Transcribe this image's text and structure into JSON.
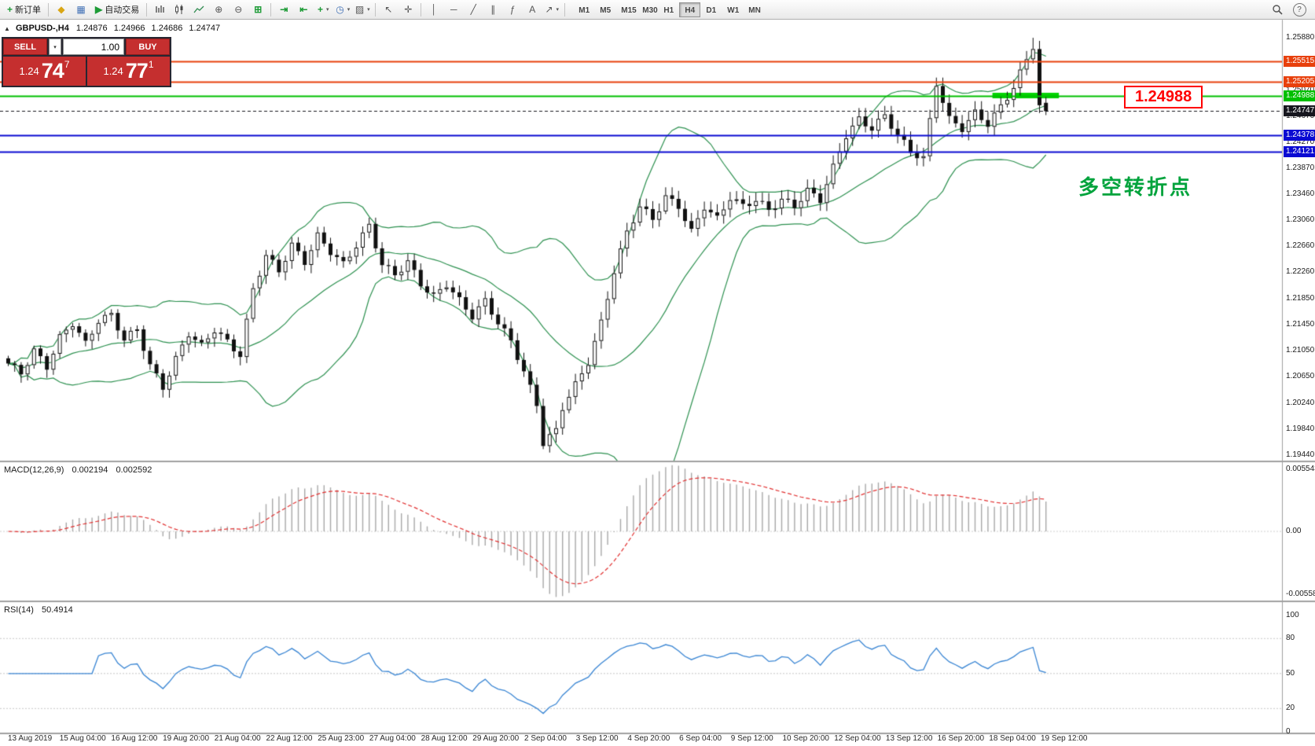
{
  "toolbar": {
    "new_order_label": "新订单",
    "autotrading_label": "自动交易",
    "timeframes": [
      "M1",
      "M5",
      "M15",
      "M30",
      "H1",
      "H4",
      "D1",
      "W1",
      "MN"
    ],
    "active_timeframe": "H4"
  },
  "trade_panel": {
    "sell_label": "SELL",
    "buy_label": "BUY",
    "volume": "1.00",
    "sell_price_small": "1.24",
    "sell_price_big": "74",
    "sell_price_sup": "7",
    "buy_price_small": "1.24",
    "buy_price_big": "77",
    "buy_price_sup": "1"
  },
  "chart_header": {
    "symbol": "GBPUSD-,H4",
    "open": "1.24876",
    "high": "1.24966",
    "low": "1.24686",
    "close": "1.24747"
  },
  "annotations": {
    "price_callout": "1.24988",
    "pivot_text": "多空转折点"
  },
  "price_scale": {
    "plot_max": 1.2616,
    "plot_min": 1.1935,
    "grid_labels": [
      "1.25880",
      "1.25470",
      "1.25070",
      "1.24670",
      "1.24270",
      "1.23870",
      "1.23460",
      "1.23060",
      "1.22660",
      "1.22260",
      "1.21850",
      "1.21450",
      "1.21050",
      "1.20650",
      "1.20240",
      "1.19840",
      "1.19440"
    ],
    "level_labels": [
      {
        "value": "1.25515",
        "price": 1.25515,
        "color": "#e8400c",
        "type": "resistance",
        "dashed": false
      },
      {
        "value": "1.25205",
        "price": 1.25205,
        "color": "#e8400c",
        "type": "resistance",
        "dashed": false
      },
      {
        "value": "1.24988",
        "price": 1.24988,
        "color": "#00bf00",
        "type": "pivot",
        "dashed": false
      },
      {
        "value": "1.24747",
        "price": 1.24747,
        "color": "#16161e",
        "type": "current-price",
        "dashed": true
      },
      {
        "value": "1.24378",
        "price": 1.24378,
        "color": "#0a0ad2",
        "type": "support",
        "dashed": false
      },
      {
        "value": "1.24121",
        "price": 1.24121,
        "color": "#0a0ad2",
        "type": "support",
        "dashed": false
      }
    ]
  },
  "macd_panel": {
    "label": "MACD(12,26,9)",
    "value_main": "0.002194",
    "value_signal": "0.002592",
    "scale": [
      "0.005543",
      "0.00",
      "-0.005583"
    ]
  },
  "rsi_panel": {
    "label": "RSI(14)",
    "value": "50.4914",
    "scale": [
      "100",
      "80",
      "50",
      "20",
      "0"
    ],
    "levels": [
      80,
      50,
      20
    ]
  },
  "time_axis": {
    "labels": [
      "13 Aug 2019",
      "15 Aug 04:00",
      "16 Aug 12:00",
      "19 Aug 20:00",
      "21 Aug 04:00",
      "22 Aug 12:00",
      "25 Aug 23:00",
      "27 Aug 04:00",
      "28 Aug 12:00",
      "29 Aug 20:00",
      "2 Sep 04:00",
      "3 Sep 12:00",
      "4 Sep 20:00",
      "6 Sep 04:00",
      "9 Sep 12:00",
      "10 Sep 20:00",
      "12 Sep 04:00",
      "13 Sep 12:00",
      "16 Sep 20:00",
      "18 Sep 04:00",
      "19 Sep 12:00"
    ]
  },
  "colors": {
    "resistance_line": "#e8400c",
    "pivot_line": "#00bf00",
    "support_line": "#0a0ad2",
    "pivot_segment": "#00d400",
    "bollinger": "#2d9150",
    "candle_up": "#ffffff",
    "candle_down": "#111111",
    "macd_hist": "#a8a8a8",
    "macd_signal": "#e23131",
    "rsi_line": "#3a86d4",
    "sell_buy_red": "#c52f2f",
    "callout_red": "#ff0000",
    "annotation_green": "#00a33c"
  },
  "chart_data": {
    "type": "candlestick",
    "symbol": "GBPUSD-",
    "timeframe": "H4",
    "candle_count": 162,
    "ohlc_current": {
      "open": 1.24876,
      "high": 1.24966,
      "low": 1.24686,
      "close": 1.24747
    },
    "spike_high": 1.2588,
    "swing_low": 1.1958,
    "price_range_visible": [
      1.1944,
      1.2588
    ],
    "pivot_segment": {
      "price": 1.24988,
      "from_candle": 153
    },
    "price_keypoints": [
      [
        0,
        1.2085
      ],
      [
        2,
        1.207
      ],
      [
        4,
        1.2105
      ],
      [
        6,
        1.208
      ],
      [
        8,
        1.2125
      ],
      [
        10,
        1.2148
      ],
      [
        12,
        1.2115
      ],
      [
        14,
        1.2152
      ],
      [
        16,
        1.216
      ],
      [
        18,
        1.2122
      ],
      [
        20,
        1.2138
      ],
      [
        22,
        1.2082
      ],
      [
        24,
        1.2048
      ],
      [
        26,
        1.2092
      ],
      [
        28,
        1.2132
      ],
      [
        30,
        1.2112
      ],
      [
        32,
        1.2138
      ],
      [
        34,
        1.2118
      ],
      [
        36,
        1.2098
      ],
      [
        38,
        1.22
      ],
      [
        40,
        1.2252
      ],
      [
        42,
        1.2228
      ],
      [
        44,
        1.2268
      ],
      [
        46,
        1.2242
      ],
      [
        48,
        1.2282
      ],
      [
        50,
        1.2258
      ],
      [
        52,
        1.2238
      ],
      [
        54,
        1.2268
      ],
      [
        56,
        1.2298
      ],
      [
        58,
        1.2238
      ],
      [
        60,
        1.2222
      ],
      [
        62,
        1.2242
      ],
      [
        64,
        1.2208
      ],
      [
        66,
        1.2188
      ],
      [
        68,
        1.2208
      ],
      [
        70,
        1.2182
      ],
      [
        72,
        1.2158
      ],
      [
        74,
        1.2182
      ],
      [
        76,
        1.2148
      ],
      [
        78,
        1.212
      ],
      [
        80,
        1.2072
      ],
      [
        82,
        1.2022
      ],
      [
        83,
        1.1962
      ],
      [
        85,
        1.1982
      ],
      [
        86,
        1.2018
      ],
      [
        88,
        1.2052
      ],
      [
        90,
        1.2088
      ],
      [
        92,
        1.2148
      ],
      [
        94,
        1.2228
      ],
      [
        96,
        1.2288
      ],
      [
        98,
        1.2328
      ],
      [
        100,
        1.2308
      ],
      [
        102,
        1.2342
      ],
      [
        104,
        1.2328
      ],
      [
        106,
        1.2288
      ],
      [
        108,
        1.2328
      ],
      [
        110,
        1.2308
      ],
      [
        112,
        1.2342
      ],
      [
        114,
        1.2328
      ],
      [
        116,
        1.2338
      ],
      [
        118,
        1.2322
      ],
      [
        120,
        1.2338
      ],
      [
        122,
        1.2328
      ],
      [
        124,
        1.2352
      ],
      [
        126,
        1.2338
      ],
      [
        128,
        1.2388
      ],
      [
        130,
        1.2438
      ],
      [
        132,
        1.2462
      ],
      [
        134,
        1.2448
      ],
      [
        136,
        1.2468
      ],
      [
        138,
        1.2438
      ],
      [
        140,
        1.2412
      ],
      [
        142,
        1.2402
      ],
      [
        144,
        1.2518
      ],
      [
        146,
        1.2462
      ],
      [
        148,
        1.2448
      ],
      [
        150,
        1.2472
      ],
      [
        152,
        1.2455
      ],
      [
        154,
        1.2482
      ],
      [
        156,
        1.2512
      ],
      [
        158,
        1.2555
      ],
      [
        159,
        1.2576
      ],
      [
        160,
        1.2482
      ],
      [
        161,
        1.24747
      ]
    ],
    "indicators": {
      "bollinger": {
        "period": 20,
        "deviation": 2
      },
      "macd": {
        "fast": 12,
        "slow": 26,
        "signal": 9,
        "value": 0.002194,
        "signal_value": 0.002592
      },
      "rsi": {
        "period": 14,
        "value": 50.4914
      }
    }
  }
}
